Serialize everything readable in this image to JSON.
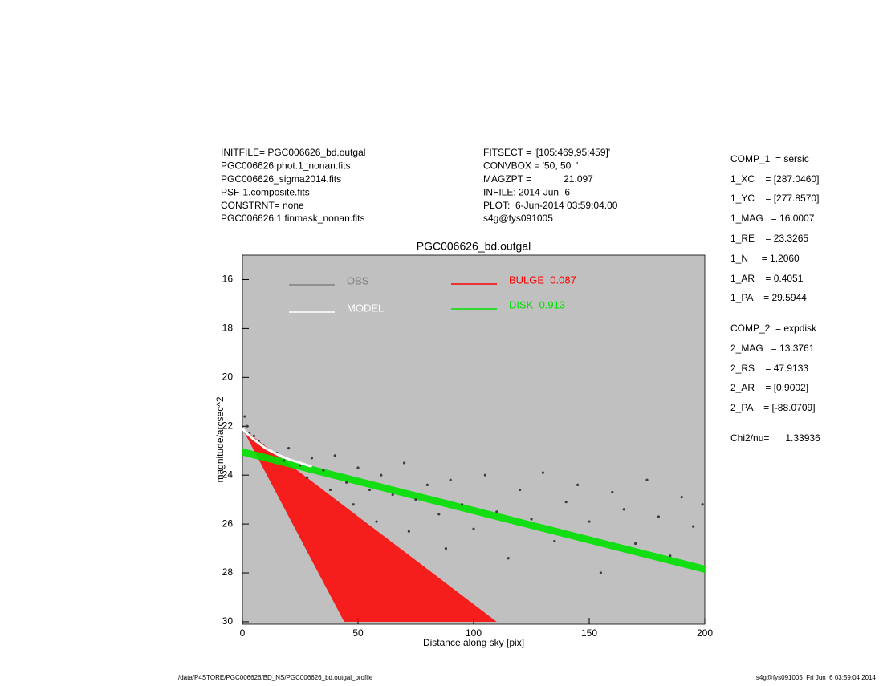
{
  "header_left": [
    "INITFILE= PGC006626_bd.outgal",
    "PGC006626.phot.1_nonan.fits",
    "PGC006626_sigma2014.fits",
    "PSF-1.composite.fits",
    "CONSTRNT= none",
    "PGC006626.1.finmask_nonan.fits"
  ],
  "header_middle": [
    "FITSECT = '[105:469,95:459]'",
    "CONVBOX = '50, 50  '",
    "MAGZPT =            21.097",
    "INFILE: 2014-Jun- 6",
    "PLOT:  6-Jun-2014 03:59:04.00",
    "s4g@fys091005"
  ],
  "params": [
    "COMP_1  = sersic",
    "1_XC    = [287.0460]",
    "1_YC    = [277.8570]",
    "1_MAG   = 16.0007",
    "1_RE    = 23.3265",
    "1_N     = 1.2060",
    "1_AR    = 0.4051",
    "1_PA    = 29.5944",
    "COMP_2  = expdisk",
    "2_MAG   = 13.3761",
    "2_RS    = 47.9133",
    "2_AR    = [0.9002]",
    "2_PA    = [-88.0709]",
    "Chi2/nu=      1.33936"
  ],
  "footer_left": "/data/P4STORE/PGC006626/BD_NS/PGC006626_bd.outgal_profile",
  "footer_right": "s4g@fys091005  Fri Jun  6 03:59:04 2014",
  "chart_data": {
    "type": "scatter",
    "title": "PGC006626_bd.outgal",
    "x_label": "Distance along sky [pix]",
    "y_label": "magnitude/arcsec^2",
    "xlim": [
      0,
      200
    ],
    "xticks": [
      0,
      50,
      100,
      150,
      200
    ],
    "ylim": [
      15,
      30.1
    ],
    "y_reversed": true,
    "yticks": [
      16,
      18,
      20,
      22,
      24,
      26,
      28,
      30
    ],
    "background": "#c0c0c0",
    "series": [
      {
        "name": "OBS",
        "kind": "points",
        "color": "#3c3c3c",
        "legend_color": "#808080",
        "x": [
          1,
          2,
          3,
          5,
          7,
          9,
          12,
          15,
          18,
          20,
          25,
          28,
          30,
          35,
          38,
          40,
          45,
          48,
          50,
          55,
          58,
          60,
          65,
          70,
          72,
          75,
          80,
          85,
          88,
          90,
          95,
          100,
          105,
          110,
          115,
          120,
          125,
          130,
          135,
          140,
          145,
          150,
          155,
          160,
          165,
          170,
          175,
          180,
          185,
          190,
          195,
          199
        ],
        "values": [
          21.6,
          22.0,
          22.3,
          22.4,
          22.6,
          22.8,
          23.0,
          23.1,
          23.4,
          22.9,
          23.6,
          24.1,
          23.3,
          23.8,
          24.6,
          23.2,
          24.3,
          25.2,
          23.7,
          24.6,
          25.9,
          24.0,
          24.8,
          23.5,
          26.3,
          25.0,
          24.4,
          25.6,
          27.0,
          24.2,
          25.2,
          26.2,
          24.0,
          25.5,
          27.4,
          24.6,
          25.8,
          23.9,
          26.7,
          25.1,
          24.4,
          25.9,
          28.0,
          24.7,
          25.4,
          26.8,
          24.2,
          25.7,
          27.3,
          24.9,
          26.1,
          25.2
        ]
      },
      {
        "name": "MODEL",
        "kind": "line",
        "color": "#ffffff",
        "x": [
          0,
          2,
          5,
          10,
          15,
          20,
          25,
          30
        ],
        "values": [
          22.1,
          22.3,
          22.55,
          22.9,
          23.15,
          23.35,
          23.5,
          23.65
        ]
      },
      {
        "name": "BULGE  0.087",
        "kind": "fan",
        "color": "#ff0000",
        "x": [
          0,
          110
        ],
        "values": [
          22.1,
          30
        ],
        "x_lower": [
          0,
          44
        ],
        "values_lower": [
          22.1,
          30
        ]
      },
      {
        "name": "DISK  0.913",
        "kind": "band",
        "color": "#00e000",
        "x": [
          0,
          50,
          100,
          150,
          200
        ],
        "values": [
          22.9,
          24.1,
          25.3,
          26.5,
          27.7
        ],
        "values_lower": [
          23.2,
          24.4,
          25.6,
          26.8,
          28.0
        ]
      }
    ]
  }
}
